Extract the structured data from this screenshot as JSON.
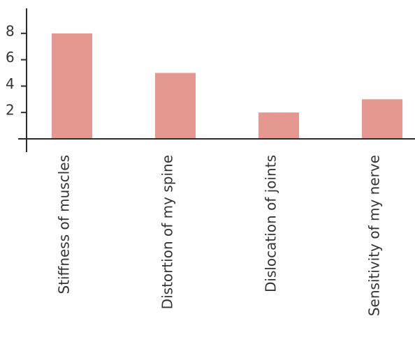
{
  "chart_data": {
    "type": "bar",
    "categories": [
      "Stiffness of muscles",
      "Distortion of my spine",
      "Dislocation of joints",
      "Sensitivity of my nerve"
    ],
    "values": [
      8,
      5,
      2,
      3
    ],
    "ylim": [
      -0.1,
      10
    ],
    "yticks": [
      2,
      4,
      6,
      8
    ],
    "ytick_labels": [
      "2",
      "4",
      "6",
      "8"
    ],
    "bar_color": "#e4988f",
    "grid": false,
    "legend": "none"
  }
}
